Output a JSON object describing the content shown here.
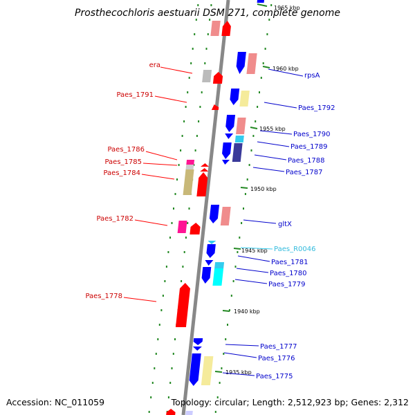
{
  "title": "Prosthecochloris aestuarii DSM 271, complete genome",
  "footer": {
    "accession": "Accession: NC_011059",
    "summary": "Topology: circular; Length: 2,512,923 bp; Genes: 2,312"
  },
  "colors": {
    "red": "#ff0000",
    "blue": "#0000ff",
    "pink": "#f08c8c",
    "khaki": "#c8b878",
    "pale_yellow": "#f5eb9b",
    "gray": "#bbbbbb",
    "cyan": "#00ffff",
    "magenta": "#ff1493",
    "navy": "#3a3a9a",
    "trna_cyan": "#33ccee",
    "backbone": "#888888",
    "tick_green": "#228822"
  },
  "ticks": [
    {
      "label": "1965 kbp"
    },
    {
      "label": "1960 kbp"
    },
    {
      "label": "1955 kbp"
    },
    {
      "label": "1950 kbp"
    },
    {
      "label": "1945 kbp"
    },
    {
      "label": "1940 kbp"
    },
    {
      "label": "1935 kbp"
    }
  ],
  "left_labels": [
    {
      "text": "era"
    },
    {
      "text": "Paes_1791"
    },
    {
      "text": "Paes_1786"
    },
    {
      "text": "Paes_1785"
    },
    {
      "text": "Paes_1784"
    },
    {
      "text": "Paes_1782"
    },
    {
      "text": "Paes_1778"
    }
  ],
  "right_labels": [
    {
      "text": "rpsA"
    },
    {
      "text": "Paes_1792"
    },
    {
      "text": "Paes_1790"
    },
    {
      "text": "Paes_1789"
    },
    {
      "text": "Paes_1788"
    },
    {
      "text": "Paes_1787"
    },
    {
      "text": "gltX"
    },
    {
      "text": "Paes_R0046"
    },
    {
      "text": "Paes_1781"
    },
    {
      "text": "Paes_1780"
    },
    {
      "text": "Paes_1779"
    },
    {
      "text": "Paes_1777"
    },
    {
      "text": "Paes_1776"
    },
    {
      "text": "Paes_1775"
    }
  ]
}
